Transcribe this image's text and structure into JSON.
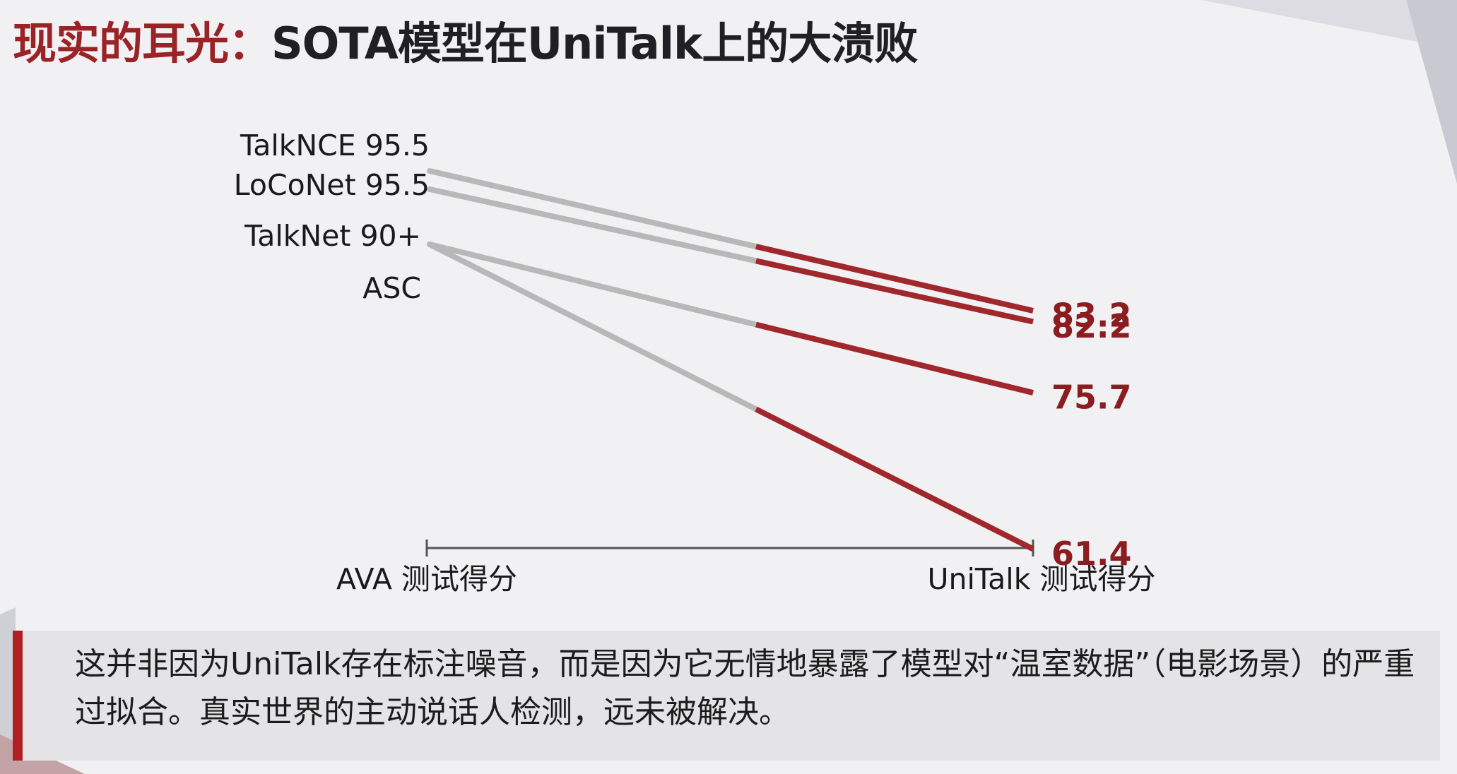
{
  "title": {
    "accent": "现实的耳光：",
    "main": "SOTA模型在UniTalk上的大溃败"
  },
  "chart_data": {
    "type": "line",
    "x": [
      "AVA 测试得分",
      "UniTalk 测试得分"
    ],
    "left_labels": [
      "TalkNCE 95.5",
      "LoCoNet 95.5",
      "TalkNet 90+",
      "ASC"
    ],
    "series": [
      {
        "name": "TalkNCE",
        "left_value": 95.5,
        "right_value": 83.2,
        "right_label": "83.2"
      },
      {
        "name": "LoCoNet",
        "left_value": 95.5,
        "right_value": 82.2,
        "right_label": "82.2"
      },
      {
        "name": "TalkNet",
        "left_value": 90,
        "right_value": 75.7,
        "right_label": "75.7"
      },
      {
        "name": "ASC",
        "left_value": 90,
        "right_value": 61.4,
        "right_label": "61.4"
      }
    ],
    "colors": {
      "faded": "#b8b8b8",
      "drop": "#a0272b",
      "axis": "#555555"
    }
  },
  "caption": "这并非因为UniTalk存在标注噪音，而是因为它无情地暴露了模型对“温室数据”（电影场景）的严重过拟合。真实世界的主动说话人检测，远未被解决。"
}
